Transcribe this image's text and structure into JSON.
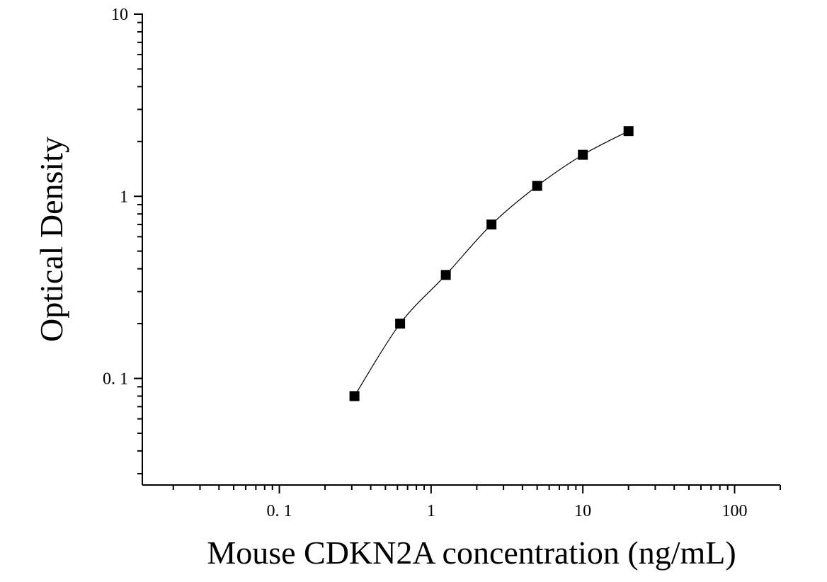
{
  "chart_data": {
    "type": "scatter",
    "title": "",
    "xlabel": "Mouse CDKN2A concentration (ng/mL)",
    "ylabel": "Optical Density",
    "x_scale": "log",
    "y_scale": "log",
    "xlim": [
      0.0125,
      200
    ],
    "ylim": [
      0.026,
      10
    ],
    "x_tick_values": [
      0.1,
      1,
      10,
      100
    ],
    "x_tick_labels": [
      "0. 1",
      "1",
      "10",
      "100"
    ],
    "y_tick_values": [
      0.1,
      1,
      10
    ],
    "y_tick_labels": [
      "0. 1",
      "1",
      "10"
    ],
    "grid": false,
    "legend": "none",
    "marker": "square",
    "marker_color": "#000000",
    "line_color": "#000000",
    "fit_curve": true,
    "series": [
      {
        "x": [
          0.3125,
          0.625,
          1.25,
          2.5,
          5,
          10,
          20
        ],
        "y": [
          0.08,
          0.2,
          0.37,
          0.7,
          1.14,
          1.69,
          2.28
        ]
      }
    ]
  }
}
